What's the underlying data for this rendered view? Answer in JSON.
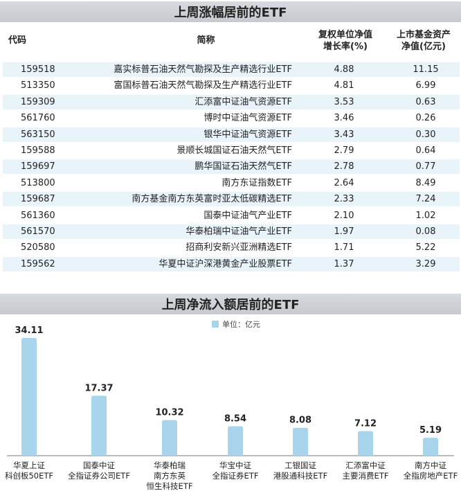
{
  "table_title": "上周涨幅居前的ETF",
  "columns": {
    "code": "代码",
    "name": "简称",
    "growth_line1": "复权单位净值",
    "growth_line2": "增长率(%)",
    "nav_line1": "上市基金资产",
    "nav_line2": "净值(亿元)"
  },
  "rows": [
    {
      "code": "159518",
      "name": "嘉实标普石油天然气勘探及生产精选行业ETF",
      "growth": "4.88",
      "nav": "11.15"
    },
    {
      "code": "513350",
      "name": "富国标普石油天然气勘探及生产精选行业ETF",
      "growth": "4.81",
      "nav": "6.99"
    },
    {
      "code": "159309",
      "name": "汇添富中证油气资源ETF",
      "growth": "3.53",
      "nav": "0.63"
    },
    {
      "code": "561760",
      "name": "博时中证油气资源ETF",
      "growth": "3.46",
      "nav": "0.26"
    },
    {
      "code": "563150",
      "name": "银华中证油气资源ETF",
      "growth": "3.43",
      "nav": "0.30"
    },
    {
      "code": "159588",
      "name": "景顺长城国证石油天然气ETF",
      "growth": "2.79",
      "nav": "0.64"
    },
    {
      "code": "159697",
      "name": "鹏华国证石油天然气ETF",
      "growth": "2.78",
      "nav": "0.77"
    },
    {
      "code": "513800",
      "name": "南方东证指数ETF",
      "growth": "2.64",
      "nav": "8.49"
    },
    {
      "code": "159687",
      "name": "南方基金南方东英富时亚太低碳精选ETF",
      "growth": "2.33",
      "nav": "7.24"
    },
    {
      "code": "561360",
      "name": "国泰中证油气产业ETF",
      "growth": "2.10",
      "nav": "1.02"
    },
    {
      "code": "561570",
      "name": "华泰柏瑞中证油气产业ETF",
      "growth": "1.97",
      "nav": "0.08"
    },
    {
      "code": "520580",
      "name": "招商利安新兴亚洲精选ETF",
      "growth": "1.71",
      "nav": "5.22"
    },
    {
      "code": "159562",
      "name": "华夏中证沪深港黄金产业股票ETF",
      "growth": "1.37",
      "nav": "3.29"
    }
  ],
  "colors": {
    "bar": "#a8d5ec",
    "row_alt": "#e8f3fa",
    "banner": "#cfd2d6"
  },
  "chart_data": {
    "type": "bar",
    "title": "上周净流入额居前的ETF",
    "legend": "单位：亿元",
    "legend_position": "top-center",
    "categories": [
      [
        "华夏上证",
        "科创板50ETF"
      ],
      [
        "国泰中证",
        "全指证券公司ETF"
      ],
      [
        "华泰柏瑞",
        "南方东英",
        "恒生科技ETF"
      ],
      [
        "华宝中证",
        "全指证券ETF"
      ],
      [
        "工银国证",
        "港股通科技ETF"
      ],
      [
        "汇添富中证",
        "主要消费ETF"
      ],
      [
        "南方中证",
        "全指房地产ETF"
      ]
    ],
    "values": [
      34.11,
      17.37,
      10.32,
      8.54,
      8.08,
      7.12,
      5.19
    ],
    "value_labels": [
      "34.11",
      "17.37",
      "10.32",
      "8.54",
      "8.08",
      "7.12",
      "5.19"
    ],
    "ylim": [
      0,
      34.11
    ],
    "grid": false
  }
}
